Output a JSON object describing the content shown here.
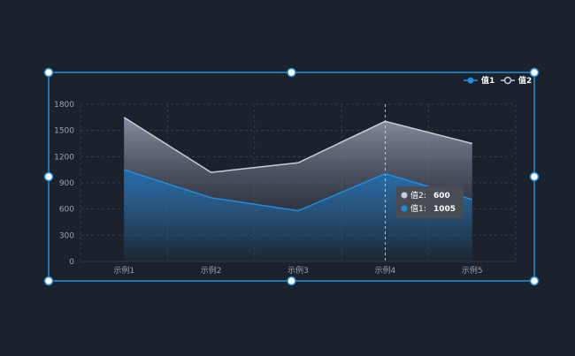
{
  "chart_data": {
    "type": "area",
    "categories": [
      "示例1",
      "示例2",
      "示例3",
      "示例4",
      "示例5"
    ],
    "series": [
      {
        "name": "值1",
        "values": [
          1050,
          730,
          580,
          1005,
          710
        ],
        "color": "#1e8fe0"
      },
      {
        "name": "值2",
        "values": [
          1650,
          1020,
          1130,
          1605,
          1350
        ],
        "color": "#c6cde0"
      }
    ],
    "yticks": [
      0,
      300,
      600,
      900,
      1200,
      1500,
      1800
    ],
    "ylim": [
      0,
      1800
    ],
    "grid": true,
    "legend_position": "top-right",
    "tooltip": {
      "category": "示例4",
      "rows": [
        {
          "label": "值2:",
          "value": "600",
          "color": "#c6cde0"
        },
        {
          "label": "值1:",
          "value": "1005",
          "color": "#1e8fe0"
        }
      ]
    }
  },
  "colors": {
    "background": "#1c222b",
    "selection": "#1e8fe0",
    "grid": "#3a4350"
  }
}
